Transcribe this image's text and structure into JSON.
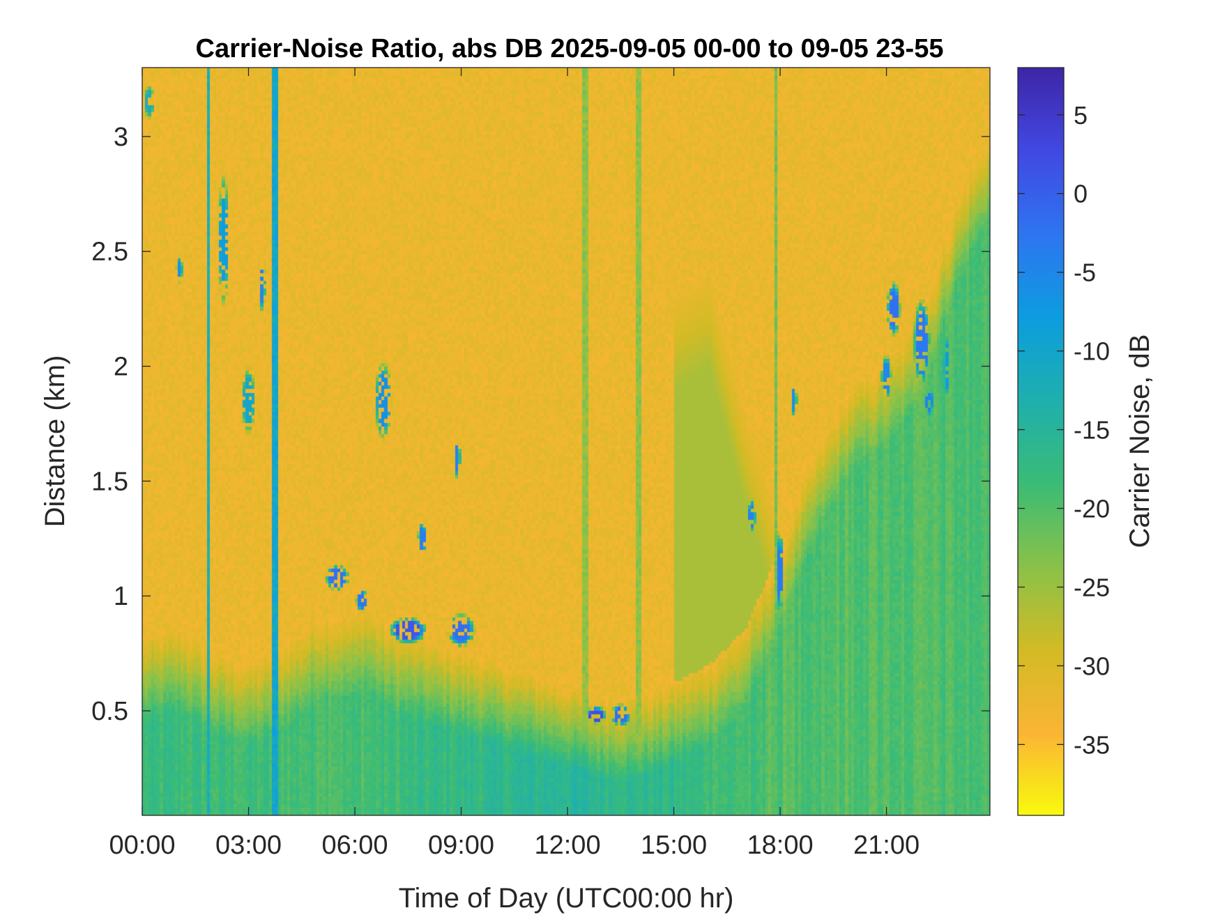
{
  "chart_data": {
    "type": "heatmap",
    "title": "Carrier-Noise Ratio, abs DB 2025-09-05 00-00 to 09-05 23-55",
    "xlabel": "Time of Day (UTC00:00 hr)",
    "ylabel": "Distance (km)",
    "colorbar_label": "Carrier Noise, dB",
    "x_ticks": [
      "00:00",
      "03:00",
      "06:00",
      "09:00",
      "12:00",
      "15:00",
      "18:00",
      "21:00"
    ],
    "x_tick_hours": [
      0,
      3,
      6,
      9,
      12,
      15,
      18,
      21
    ],
    "xlim_hours": [
      0,
      23.92
    ],
    "y_ticks": [
      "0.5",
      "1",
      "1.5",
      "2",
      "2.5",
      "3"
    ],
    "y_tick_values": [
      0.5,
      1,
      1.5,
      2,
      2.5,
      3
    ],
    "ylim_km": [
      0.045,
      3.3
    ],
    "colorbar_ticks": [
      "5",
      "0",
      "-5",
      "-10",
      "-15",
      "-20",
      "-25",
      "-30",
      "-35"
    ],
    "colorbar_tick_values": [
      5,
      0,
      -5,
      -10,
      -15,
      -20,
      -25,
      -30,
      -35
    ],
    "clim_db": [
      -39.5,
      8
    ],
    "colormap": "parula (reversed)",
    "colormap_stops": [
      "#f9fb0e",
      "#fbb535",
      "#d3bb25",
      "#8ac249",
      "#3bbc76",
      "#1fb0ae",
      "#0d9de0",
      "#2e76f1",
      "#4249e3",
      "#3e26a8"
    ],
    "grid": false,
    "background_noise_db": -32,
    "time_step_hours": 0.0833,
    "boundary_layer_top_km": {
      "hours": [
        0,
        1,
        2,
        3,
        3.8,
        5,
        6,
        6.3,
        7,
        8,
        9,
        10,
        11,
        12,
        13,
        14,
        15,
        16,
        17,
        18,
        19,
        20,
        21,
        22,
        23,
        23.92
      ],
      "values": [
        0.8,
        0.85,
        0.75,
        0.7,
        0.75,
        0.9,
        0.9,
        0.95,
        0.85,
        0.8,
        0.75,
        0.7,
        0.65,
        0.6,
        0.55,
        0.55,
        0.62,
        0.7,
        0.85,
        1.2,
        1.6,
        1.9,
        2.0,
        2.2,
        2.7,
        3.0
      ]
    },
    "surface_layer_db": {
      "hours": [
        0,
        6,
        12,
        15,
        18,
        21,
        23.92
      ],
      "values": [
        -18,
        -19,
        -15,
        -17,
        -20,
        -20,
        -19
      ]
    },
    "elevated_layer": {
      "top_km": {
        "hours": [
          15,
          16,
          17,
          18
        ],
        "values": [
          2.3,
          2.4,
          1.8,
          1.3
        ]
      },
      "value_db": -26
    },
    "cloud_features": [
      {
        "hour": 0.2,
        "km": 3.15,
        "value_db": -12,
        "width_hours": 0.3,
        "height_km": 0.15
      },
      {
        "hour": 1.05,
        "km": 2.42,
        "value_db": -6,
        "width_hours": 0.2,
        "height_km": 0.12
      },
      {
        "hour": 2.3,
        "km": 2.55,
        "value_db": -8,
        "width_hours": 0.3,
        "height_km": 0.6
      },
      {
        "hour": 3.4,
        "km": 2.35,
        "value_db": -5,
        "width_hours": 0.15,
        "height_km": 0.25
      },
      {
        "hour": 3.0,
        "km": 1.85,
        "value_db": -10,
        "width_hours": 0.4,
        "height_km": 0.3
      },
      {
        "hour": 5.5,
        "km": 1.08,
        "value_db": -2,
        "width_hours": 0.7,
        "height_km": 0.12
      },
      {
        "hour": 6.2,
        "km": 0.98,
        "value_db": -3,
        "width_hours": 0.35,
        "height_km": 0.1
      },
      {
        "hour": 6.8,
        "km": 1.85,
        "value_db": -6,
        "width_hours": 0.5,
        "height_km": 0.35
      },
      {
        "hour": 7.5,
        "km": 0.85,
        "value_db": 1,
        "width_hours": 1.1,
        "height_km": 0.12
      },
      {
        "hour": 7.9,
        "km": 1.25,
        "value_db": -4,
        "width_hours": 0.25,
        "height_km": 0.15
      },
      {
        "hour": 9.0,
        "km": 0.85,
        "value_db": -2,
        "width_hours": 0.8,
        "height_km": 0.15
      },
      {
        "hour": 8.9,
        "km": 1.6,
        "value_db": -4,
        "width_hours": 0.15,
        "height_km": 0.2
      },
      {
        "hour": 12.8,
        "km": 0.48,
        "value_db": 2,
        "width_hours": 0.6,
        "height_km": 0.08
      },
      {
        "hour": 13.5,
        "km": 0.48,
        "value_db": -2,
        "width_hours": 0.6,
        "height_km": 0.1
      },
      {
        "hour": 17.2,
        "km": 1.35,
        "value_db": -4,
        "width_hours": 0.25,
        "height_km": 0.15
      },
      {
        "hour": 18.0,
        "km": 1.1,
        "value_db": -3,
        "width_hours": 0.2,
        "height_km": 0.4
      },
      {
        "hour": 18.4,
        "km": 1.85,
        "value_db": -6,
        "width_hours": 0.15,
        "height_km": 0.15
      },
      {
        "hour": 21.2,
        "km": 2.25,
        "value_db": -2,
        "width_hours": 0.4,
        "height_km": 0.25
      },
      {
        "hour": 21.0,
        "km": 1.95,
        "value_db": -5,
        "width_hours": 0.3,
        "height_km": 0.2
      },
      {
        "hour": 22.0,
        "km": 2.1,
        "value_db": -3,
        "width_hours": 0.5,
        "height_km": 0.4
      },
      {
        "hour": 22.2,
        "km": 1.85,
        "value_db": -4,
        "width_hours": 0.3,
        "height_km": 0.15
      },
      {
        "hour": 22.7,
        "km": 2.0,
        "value_db": -8,
        "width_hours": 0.2,
        "height_km": 0.3
      }
    ],
    "vertical_streaks": [
      {
        "hour": 1.9,
        "value_db": -12
      },
      {
        "hour": 3.75,
        "value_db": -10
      },
      {
        "hour": 12.5,
        "value_db": -24
      },
      {
        "hour": 14.0,
        "value_db": -24
      },
      {
        "hour": 17.9,
        "value_db": -22
      }
    ]
  }
}
